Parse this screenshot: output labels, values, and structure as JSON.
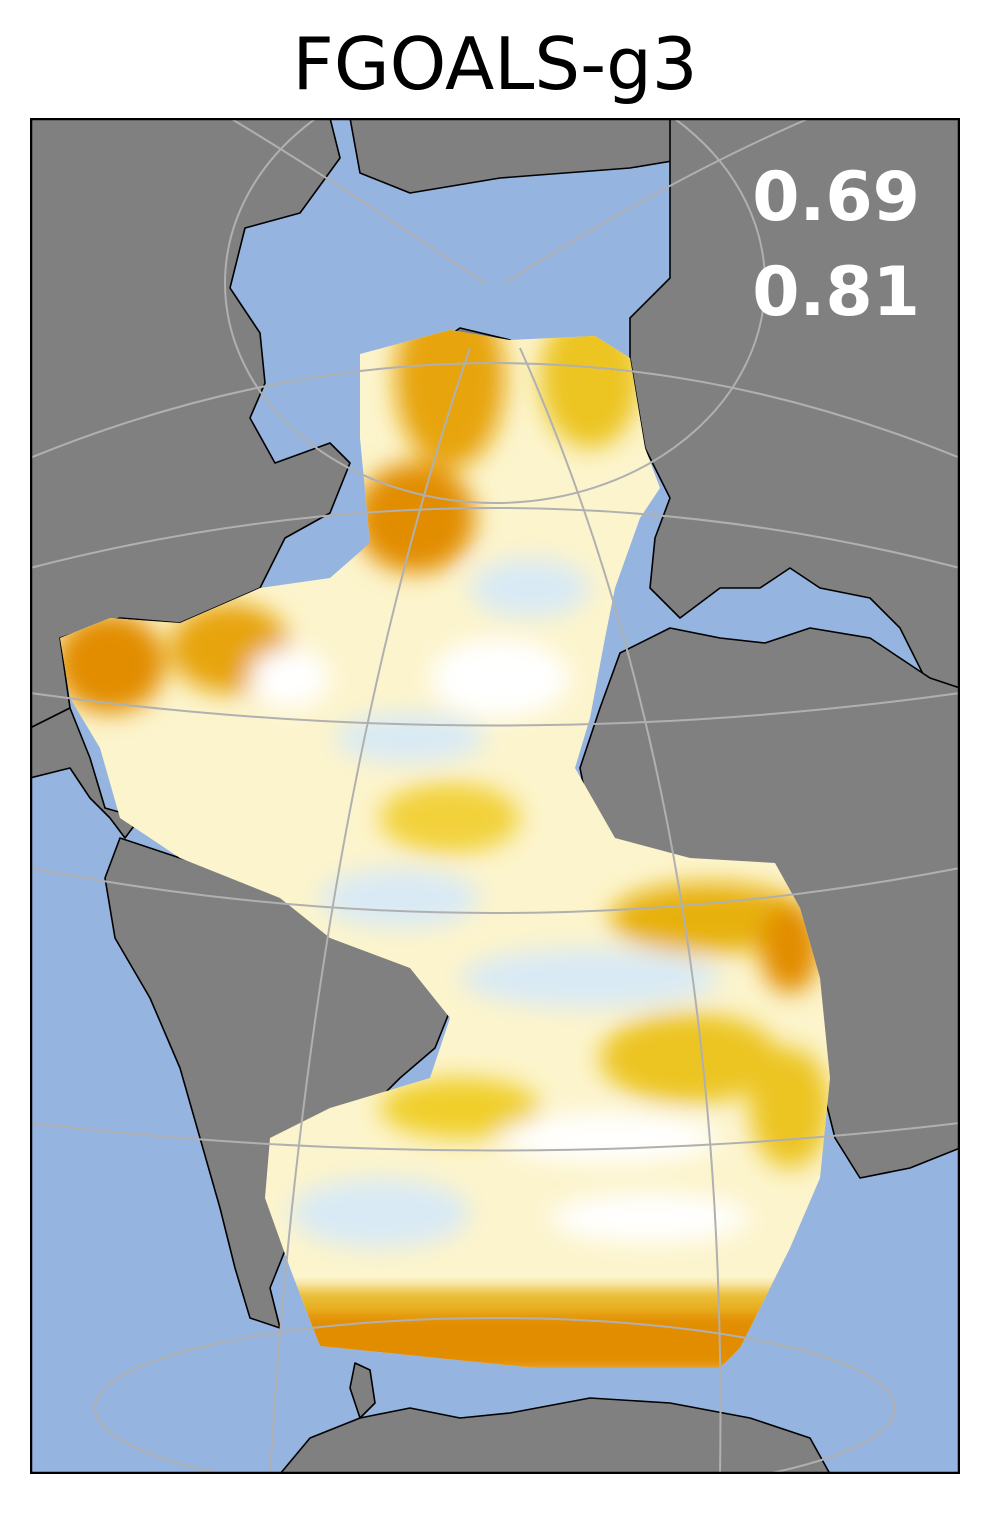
{
  "map": {
    "title": "FGOALS-g3",
    "stats": [
      "0.69",
      "0.81"
    ],
    "colors": {
      "ocean": "#95b4e0",
      "land": "#808080",
      "coast": "#000000",
      "graticule": "#b0b0b0",
      "frame": "#000000",
      "field_white": "#ffffff",
      "field_light_yellow": "#fbefb2",
      "field_yellow": "#ecc521",
      "field_orange": "#e28d00",
      "field_light_blue": "#d9eaf5",
      "stat_text": "#ffffff"
    }
  }
}
